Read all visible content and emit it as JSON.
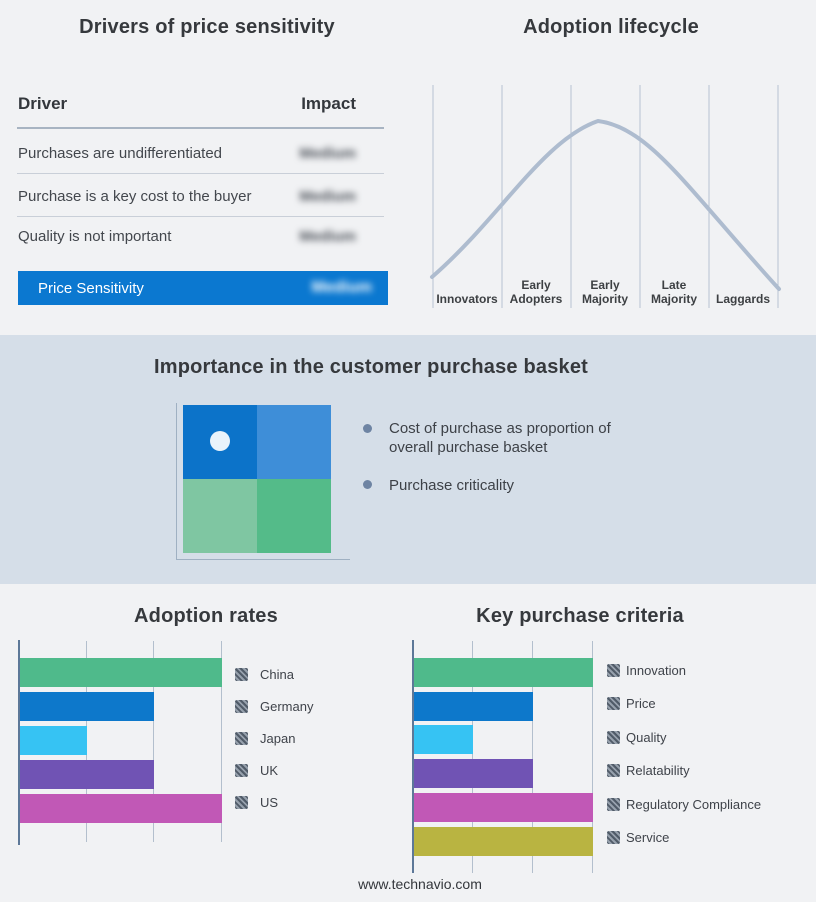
{
  "colors": {
    "page_bg": "#f1f2f4",
    "band_bg": "#d5dee8",
    "accent_blue": "#0b78d0",
    "curve": "#aebccf",
    "axis": "#5d7898",
    "gridline": "#b3bfcd",
    "quadrant": {
      "top_left": "#0c73c9",
      "top_right": "#3e8ed8",
      "bottom_left": "#7fc6a2",
      "bottom_right": "#54bb89"
    }
  },
  "drivers": {
    "title": "Drivers of price sensitivity",
    "columns": {
      "driver": "Driver",
      "impact": "Impact"
    },
    "rows": [
      {
        "driver": "Purchases are undifferentiated",
        "impact": "Medium",
        "impact_blurred": true
      },
      {
        "driver": "Purchase is a key cost to the buyer",
        "impact": "Medium",
        "impact_blurred": true
      },
      {
        "driver": "Quality is not important",
        "impact": "Medium",
        "impact_blurred": true
      }
    ],
    "highlight_row": {
      "driver": "Price Sensitivity",
      "impact": "Medium",
      "impact_blurred": true
    }
  },
  "lifecycle": {
    "title": "Adoption lifecycle",
    "stages": [
      {
        "line1": "Innovators",
        "line2": ""
      },
      {
        "line1": "Early",
        "line2": "Adopters"
      },
      {
        "line1": "Early",
        "line2": "Majority"
      },
      {
        "line1": "Late",
        "line2": "Majority"
      },
      {
        "line1": "Laggards",
        "line2": ""
      }
    ]
  },
  "basket": {
    "title": "Importance in the customer purchase basket",
    "bullets": [
      "Cost of purchase as proportion of overall purchase basket",
      "Purchase criticality"
    ]
  },
  "footer": "www.technavio.com",
  "chart_data": [
    {
      "type": "line",
      "title": "Adoption lifecycle",
      "categories": [
        "Innovators",
        "Early Adopters",
        "Early Majority",
        "Late Majority",
        "Laggards"
      ],
      "shape": "bell curve rising from the Innovators boundary, peaking just right of the Early Majority boundary, falling to the Laggards boundary",
      "grid": "six vertical category-separator lines, no y axis, no tick values",
      "line_color": "#aebccf"
    },
    {
      "type": "bar",
      "orientation": "horizontal",
      "title": "Adoption rates",
      "categories": [
        "China",
        "Germany",
        "Japan",
        "UK",
        "US"
      ],
      "values": [
        3,
        2,
        1,
        2,
        3
      ],
      "value_units": "relative gridline units (no numeric axis labels shown)",
      "xlim": [
        0,
        3
      ],
      "grid": "vertical gridlines at 1, 2, 3",
      "bar_colors": [
        "#4fba8b",
        "#0d78cb",
        "#36c3f3",
        "#7053b4",
        "#c158b6"
      ],
      "legend_position": "right",
      "legend_swatch_style": "hatched"
    },
    {
      "type": "bar",
      "orientation": "horizontal",
      "title": "Key purchase criteria",
      "categories": [
        "Innovation",
        "Price",
        "Quality",
        "Relatability",
        "Regulatory Compliance",
        "Service"
      ],
      "values": [
        3,
        2,
        1,
        2,
        3,
        3
      ],
      "value_units": "relative gridline units (no numeric axis labels shown)",
      "xlim": [
        0,
        3
      ],
      "grid": "vertical gridlines at 1, 2, 3",
      "bar_colors": [
        "#4fba8b",
        "#0d78cb",
        "#36c3f3",
        "#7053b4",
        "#c158b6",
        "#b9b441"
      ],
      "legend_position": "right",
      "legend_swatch_style": "hatched"
    }
  ]
}
